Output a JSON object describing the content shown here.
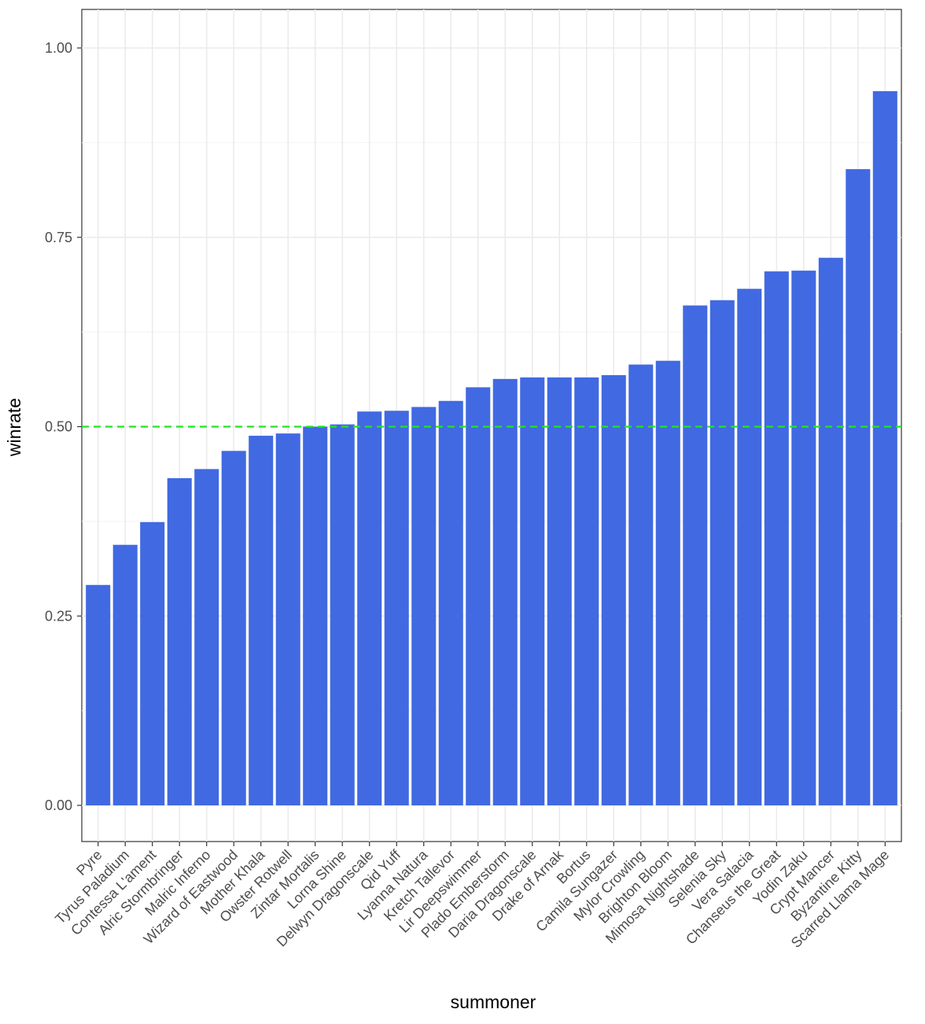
{
  "chart_data": {
    "type": "bar",
    "xlabel": "summoner",
    "ylabel": "winrate",
    "ylim": [
      -0.045,
      1.05
    ],
    "yticks": [
      0.0,
      0.25,
      0.5,
      0.75,
      1.0
    ],
    "ytick_labels": [
      "0.00",
      "0.25",
      "0.50",
      "0.75",
      "1.00"
    ],
    "grid": true,
    "reference_line": {
      "y": 0.5,
      "style": "dashed",
      "color": "#22e522"
    },
    "bar_color": "#4169e1",
    "categories": [
      "Pyre",
      "Tyrus Paladium",
      "Contessa L'ament",
      "Alric Stormbringer",
      "Malric Inferno",
      "Wizard of Eastwood",
      "Mother Khala",
      "Owster Rotwell",
      "Zintar Mortalis",
      "Lorna Shine",
      "Delwyn Dragonscale",
      "Qid Yuff",
      "Lyanna Natura",
      "Kretch Tallevor",
      "Lir Deepswimmer",
      "Plado Emberstorm",
      "Daria Dragonscale",
      "Drake of Arnak",
      "Bortus",
      "Camila Sungazer",
      "Mylor Crowling",
      "Brighton Bloom",
      "Mimosa Nightshade",
      "Selenia Sky",
      "Vera Salacia",
      "Chanseus the Great",
      "Yodin Zaku",
      "Crypt Mancer",
      "Byzantine Kitty",
      "Scarred Llama Mage"
    ],
    "values": [
      0.291,
      0.344,
      0.374,
      0.432,
      0.444,
      0.468,
      0.488,
      0.491,
      0.5,
      0.503,
      0.52,
      0.521,
      0.526,
      0.534,
      0.552,
      0.563,
      0.565,
      0.565,
      0.565,
      0.568,
      0.582,
      0.587,
      0.66,
      0.667,
      0.682,
      0.705,
      0.706,
      0.723,
      0.84,
      0.943
    ]
  }
}
